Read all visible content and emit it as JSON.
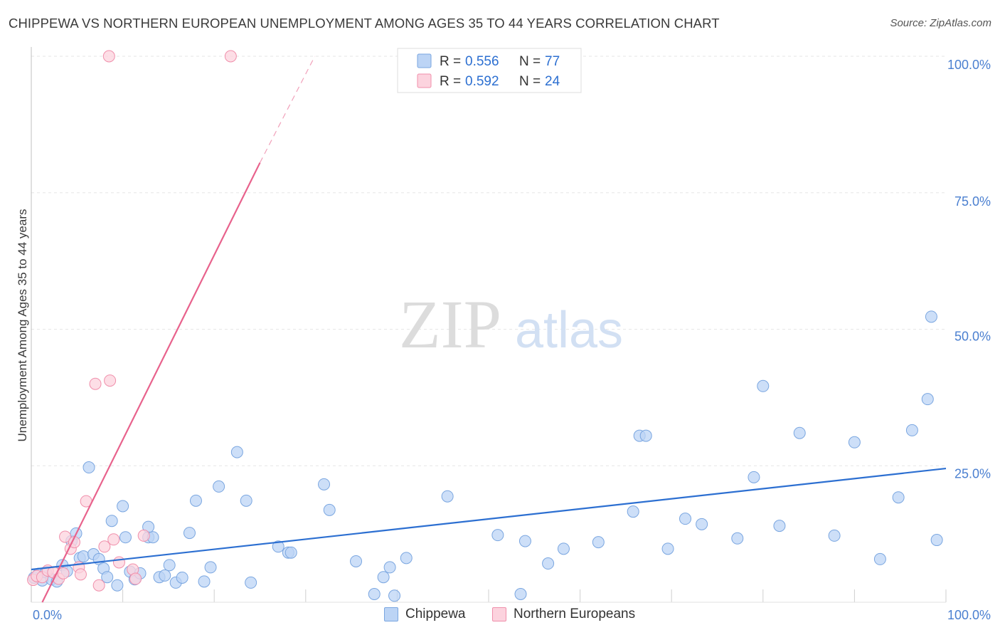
{
  "title": "CHIPPEWA VS NORTHERN EUROPEAN UNEMPLOYMENT AMONG AGES 35 TO 44 YEARS CORRELATION CHART",
  "source": "Source: ZipAtlas.com",
  "watermark": {
    "zip": "ZIP",
    "atlas": "atlas"
  },
  "colors": {
    "chippewa_fill": "#bcd4f5",
    "chippewa_stroke": "#7aa6e0",
    "chippewa_line": "#2c6fd1",
    "northern_fill": "#fcd3de",
    "northern_stroke": "#f08fab",
    "northern_line": "#e8628c",
    "tick_label": "#4a7fd0",
    "grid": "#e6e6e6"
  },
  "legend": {
    "rows": [
      {
        "r_label": "R = ",
        "r_value": "0.556",
        "n_label": "N = ",
        "n_value": "77"
      },
      {
        "r_label": "R = ",
        "r_value": "0.592",
        "n_label": "N = ",
        "n_value": "24"
      }
    ]
  },
  "bottom_legend": [
    "Chippewa",
    "Northern Europeans"
  ],
  "chart_data": {
    "type": "scatter",
    "ylabel": "Unemployment Among Ages 35 to 44 years",
    "xlabel": "",
    "x_tick_labels": [
      "0.0%",
      "100.0%"
    ],
    "y_tick_labels": [
      "100.0%",
      "75.0%",
      "50.0%",
      "25.0%"
    ],
    "y_ticks": [
      100,
      75,
      50,
      25
    ],
    "xlim": [
      0,
      100
    ],
    "ylim": [
      0,
      100
    ],
    "grid": true,
    "legend_position": "top-center",
    "series": [
      {
        "name": "Chippewa",
        "trend": {
          "x": [
            0,
            100
          ],
          "y": [
            6.0,
            24.5
          ]
        },
        "points": [
          [
            0.3,
            4.5
          ],
          [
            0.8,
            5.2
          ],
          [
            1.2,
            4.0
          ],
          [
            1.6,
            5.5
          ],
          [
            2.2,
            4.2
          ],
          [
            2.8,
            3.8
          ],
          [
            3.4,
            6.8
          ],
          [
            3.9,
            5.7
          ],
          [
            4.4,
            11.2
          ],
          [
            4.9,
            12.6
          ],
          [
            5.3,
            8.1
          ],
          [
            5.7,
            8.4
          ],
          [
            6.3,
            24.7
          ],
          [
            6.8,
            8.8
          ],
          [
            7.4,
            7.9
          ],
          [
            7.9,
            6.2
          ],
          [
            8.3,
            4.6
          ],
          [
            8.8,
            14.9
          ],
          [
            9.4,
            3.1
          ],
          [
            10.0,
            17.6
          ],
          [
            10.3,
            11.9
          ],
          [
            10.8,
            5.6
          ],
          [
            11.3,
            4.2
          ],
          [
            11.9,
            5.3
          ],
          [
            12.8,
            11.9
          ],
          [
            12.8,
            13.8
          ],
          [
            13.3,
            11.9
          ],
          [
            14.0,
            4.6
          ],
          [
            14.6,
            4.9
          ],
          [
            15.1,
            6.8
          ],
          [
            15.8,
            3.6
          ],
          [
            16.5,
            4.5
          ],
          [
            17.3,
            12.7
          ],
          [
            18.0,
            18.6
          ],
          [
            18.9,
            3.8
          ],
          [
            19.6,
            6.4
          ],
          [
            20.5,
            21.2
          ],
          [
            22.5,
            27.5
          ],
          [
            23.5,
            18.6
          ],
          [
            24.0,
            3.6
          ],
          [
            27.0,
            10.2
          ],
          [
            28.1,
            9.1
          ],
          [
            28.4,
            9.1
          ],
          [
            32.0,
            21.6
          ],
          [
            32.6,
            16.9
          ],
          [
            35.5,
            7.5
          ],
          [
            37.5,
            1.5
          ],
          [
            38.5,
            4.6
          ],
          [
            39.2,
            6.4
          ],
          [
            39.7,
            1.2
          ],
          [
            41.0,
            8.1
          ],
          [
            45.5,
            19.4
          ],
          [
            51.0,
            12.3
          ],
          [
            53.5,
            1.5
          ],
          [
            54.0,
            11.2
          ],
          [
            56.5,
            7.1
          ],
          [
            58.2,
            9.8
          ],
          [
            62.0,
            11.0
          ],
          [
            65.8,
            16.6
          ],
          [
            66.5,
            30.5
          ],
          [
            67.2,
            30.5
          ],
          [
            69.6,
            9.8
          ],
          [
            71.5,
            15.3
          ],
          [
            73.3,
            14.3
          ],
          [
            77.2,
            11.7
          ],
          [
            79.0,
            22.9
          ],
          [
            80.0,
            39.6
          ],
          [
            81.8,
            14.0
          ],
          [
            84.0,
            31.0
          ],
          [
            87.8,
            12.2
          ],
          [
            90.0,
            29.3
          ],
          [
            92.8,
            7.9
          ],
          [
            94.8,
            19.2
          ],
          [
            96.3,
            31.5
          ],
          [
            98.0,
            37.2
          ],
          [
            98.4,
            52.3
          ],
          [
            99.0,
            11.4
          ]
        ]
      },
      {
        "name": "Northern Europeans",
        "trend": {
          "x": [
            1.2,
            25.0
          ],
          "y": [
            0,
            80.5
          ]
        },
        "trend_dashed": {
          "x": [
            25.0,
            31.0
          ],
          "y": [
            80.5,
            100
          ]
        },
        "points": [
          [
            0.2,
            4.1
          ],
          [
            0.6,
            4.8
          ],
          [
            1.2,
            4.6
          ],
          [
            1.8,
            5.8
          ],
          [
            2.4,
            5.5
          ],
          [
            3.0,
            4.3
          ],
          [
            3.5,
            5.3
          ],
          [
            3.7,
            12.0
          ],
          [
            4.3,
            9.8
          ],
          [
            4.7,
            11.0
          ],
          [
            5.2,
            6.4
          ],
          [
            5.4,
            5.1
          ],
          [
            6.0,
            18.5
          ],
          [
            7.0,
            40.0
          ],
          [
            7.4,
            3.1
          ],
          [
            8.0,
            10.2
          ],
          [
            8.6,
            40.6
          ],
          [
            9.0,
            11.5
          ],
          [
            9.6,
            7.3
          ],
          [
            11.1,
            6.0
          ],
          [
            11.4,
            4.3
          ],
          [
            12.3,
            12.2
          ],
          [
            8.5,
            100
          ],
          [
            21.8,
            100
          ]
        ]
      }
    ]
  }
}
